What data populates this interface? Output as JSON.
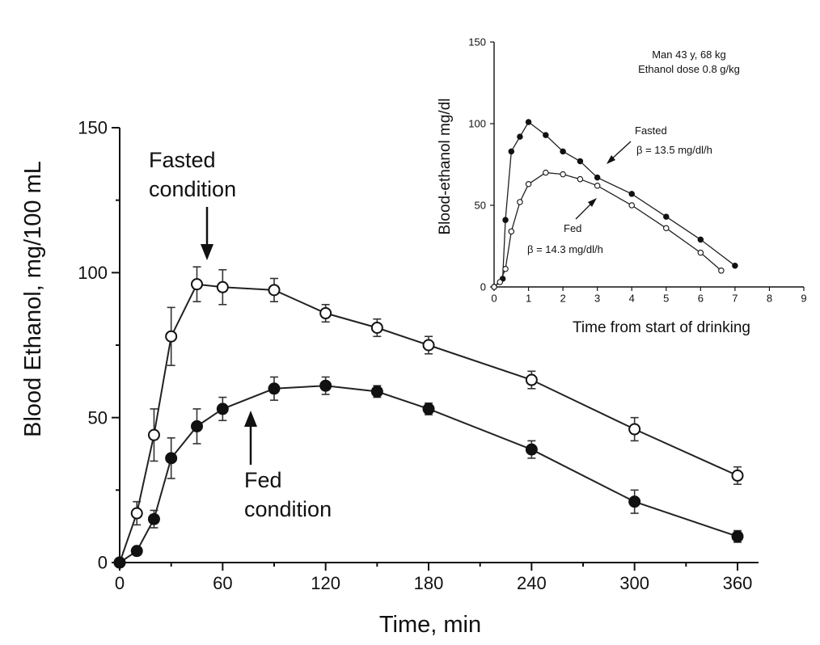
{
  "chart_data": [
    {
      "type": "line",
      "xlabel": "Time, min",
      "ylabel": "Blood Ethanol, mg/100 mL",
      "xlim": [
        0,
        360
      ],
      "ylim": [
        0,
        150
      ],
      "xticks": [
        0,
        60,
        120,
        180,
        240,
        300,
        360
      ],
      "yticks": [
        0,
        50,
        100,
        150
      ],
      "grid": false,
      "annotations": [
        {
          "text_lines": [
            "Fasted",
            "condition"
          ]
        },
        {
          "text_lines": [
            "Fed",
            "condition"
          ]
        }
      ],
      "series": [
        {
          "marker": "open-circle",
          "x": [
            0,
            10,
            20,
            30,
            45,
            60,
            90,
            120,
            150,
            180,
            240,
            300,
            360
          ],
          "y": [
            0,
            17,
            44,
            78,
            96,
            95,
            94,
            86,
            81,
            75,
            63,
            46,
            30
          ],
          "err": [
            0,
            4,
            9,
            10,
            6,
            6,
            4,
            3,
            3,
            3,
            3,
            4,
            3
          ]
        },
        {
          "marker": "filled-circle",
          "x": [
            0,
            10,
            20,
            30,
            45,
            60,
            90,
            120,
            150,
            180,
            240,
            300,
            360
          ],
          "y": [
            0,
            4,
            15,
            36,
            47,
            53,
            60,
            61,
            59,
            53,
            39,
            21,
            9
          ],
          "err": [
            0,
            1,
            3,
            7,
            6,
            4,
            4,
            3,
            2,
            2,
            3,
            4,
            2
          ]
        }
      ]
    },
    {
      "type": "line",
      "xlabel": "Time from start of drinking",
      "ylabel": "Blood-ethanol mg/dl",
      "xlim": [
        0,
        9
      ],
      "ylim": [
        0,
        150
      ],
      "xticks": [
        0,
        1,
        2,
        3,
        4,
        5,
        6,
        7,
        8,
        9
      ],
      "yticks": [
        0,
        50,
        100,
        150
      ],
      "grid": false,
      "info_lines": [
        "Man 43 y, 68 kg",
        "Ethanol dose 0.8 g/kg"
      ],
      "annotations": [
        {
          "label": "Fasted",
          "beta": "β = 13.5 mg/dl/h"
        },
        {
          "label": "Fed",
          "beta": "β = 14.3 mg/dl/h"
        }
      ],
      "series": [
        {
          "marker": "filled-circle",
          "x": [
            0,
            0.25,
            0.33,
            0.5,
            0.75,
            1,
            1.5,
            2,
            2.5,
            3,
            4,
            5,
            6,
            7
          ],
          "y": [
            0,
            5,
            41,
            83,
            92,
            101,
            93,
            83,
            77,
            67,
            57,
            43,
            29,
            13
          ]
        },
        {
          "marker": "open-circle",
          "x": [
            0,
            0.17,
            0.33,
            0.5,
            0.75,
            1,
            1.5,
            2,
            2.5,
            3,
            4,
            5,
            6,
            6.6
          ],
          "y": [
            0,
            3,
            11,
            34,
            52,
            63,
            70,
            69,
            66,
            62,
            50,
            36,
            21,
            10
          ]
        }
      ]
    }
  ]
}
